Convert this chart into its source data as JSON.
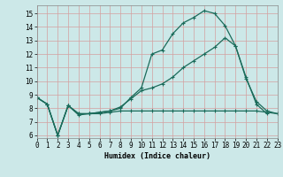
{
  "xlabel": "Humidex (Indice chaleur)",
  "xlim": [
    0,
    23
  ],
  "ylim": [
    5.8,
    15.6
  ],
  "yticks": [
    6,
    7,
    8,
    9,
    10,
    11,
    12,
    13,
    14,
    15
  ],
  "xticks": [
    0,
    1,
    2,
    3,
    4,
    5,
    6,
    7,
    8,
    9,
    10,
    11,
    12,
    13,
    14,
    15,
    16,
    17,
    18,
    19,
    20,
    21,
    22,
    23
  ],
  "background_color": "#cce8e8",
  "grid_color": "#b8d8d8",
  "line_color": "#1a6b5a",
  "series1_x": [
    0,
    1,
    2,
    3,
    4,
    5,
    6,
    7,
    8,
    9,
    10,
    11,
    12,
    13,
    14,
    15,
    16,
    17,
    18,
    19,
    20,
    21,
    22
  ],
  "series1_y": [
    8.8,
    8.3,
    6.0,
    8.2,
    7.6,
    7.6,
    7.7,
    7.8,
    8.0,
    8.8,
    9.5,
    12.0,
    12.3,
    13.5,
    14.3,
    14.7,
    15.2,
    15.0,
    14.1,
    12.6,
    10.3,
    8.3,
    7.6
  ],
  "series2_x": [
    0,
    1,
    2,
    3,
    4,
    5,
    6,
    7,
    8,
    9,
    10,
    11,
    12,
    13,
    14,
    15,
    16,
    17,
    18,
    19,
    20,
    21,
    22,
    23
  ],
  "series2_y": [
    8.8,
    8.3,
    6.0,
    8.2,
    7.6,
    7.6,
    7.7,
    7.8,
    8.1,
    8.7,
    9.3,
    9.5,
    9.8,
    10.3,
    11.0,
    11.5,
    12.0,
    12.5,
    13.2,
    12.6,
    10.2,
    8.5,
    7.8,
    7.6
  ],
  "series3_x": [
    0,
    1,
    2,
    3,
    4,
    5,
    6,
    7,
    8,
    9,
    10,
    11,
    12,
    13,
    14,
    15,
    16,
    17,
    18,
    19,
    20,
    21,
    22,
    23
  ],
  "series3_y": [
    8.8,
    8.3,
    6.0,
    8.2,
    7.5,
    7.6,
    7.6,
    7.7,
    7.8,
    7.8,
    7.8,
    7.8,
    7.8,
    7.8,
    7.8,
    7.8,
    7.8,
    7.8,
    7.8,
    7.8,
    7.8,
    7.8,
    7.7,
    7.6
  ]
}
